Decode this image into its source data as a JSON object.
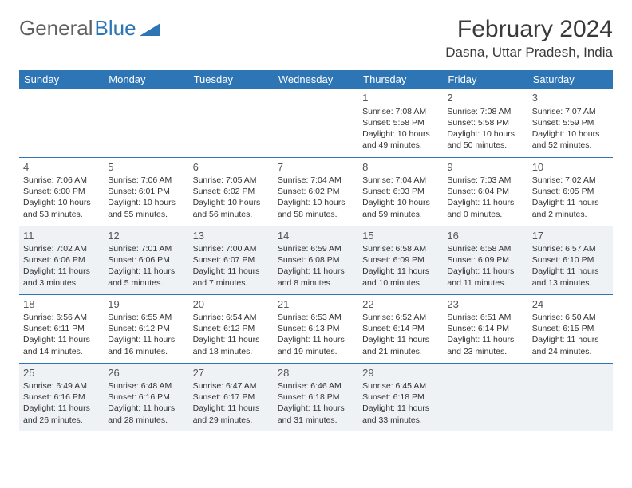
{
  "logo": {
    "text1": "General",
    "text2": "Blue"
  },
  "title": "February 2024",
  "location": "Dasna, Uttar Pradesh, India",
  "colors": {
    "header_bg": "#2e75b6",
    "header_text": "#ffffff",
    "shade_bg": "#eef2f5",
    "border": "#2e75b6",
    "text": "#333333"
  },
  "weekdays": [
    "Sunday",
    "Monday",
    "Tuesday",
    "Wednesday",
    "Thursday",
    "Friday",
    "Saturday"
  ],
  "weeks": [
    [
      null,
      null,
      null,
      null,
      {
        "n": "1",
        "sr": "7:08 AM",
        "ss": "5:58 PM",
        "dl1": "Daylight: 10 hours",
        "dl2": "and 49 minutes."
      },
      {
        "n": "2",
        "sr": "7:08 AM",
        "ss": "5:58 PM",
        "dl1": "Daylight: 10 hours",
        "dl2": "and 50 minutes."
      },
      {
        "n": "3",
        "sr": "7:07 AM",
        "ss": "5:59 PM",
        "dl1": "Daylight: 10 hours",
        "dl2": "and 52 minutes."
      }
    ],
    [
      {
        "n": "4",
        "sr": "7:06 AM",
        "ss": "6:00 PM",
        "dl1": "Daylight: 10 hours",
        "dl2": "and 53 minutes."
      },
      {
        "n": "5",
        "sr": "7:06 AM",
        "ss": "6:01 PM",
        "dl1": "Daylight: 10 hours",
        "dl2": "and 55 minutes."
      },
      {
        "n": "6",
        "sr": "7:05 AM",
        "ss": "6:02 PM",
        "dl1": "Daylight: 10 hours",
        "dl2": "and 56 minutes."
      },
      {
        "n": "7",
        "sr": "7:04 AM",
        "ss": "6:02 PM",
        "dl1": "Daylight: 10 hours",
        "dl2": "and 58 minutes."
      },
      {
        "n": "8",
        "sr": "7:04 AM",
        "ss": "6:03 PM",
        "dl1": "Daylight: 10 hours",
        "dl2": "and 59 minutes."
      },
      {
        "n": "9",
        "sr": "7:03 AM",
        "ss": "6:04 PM",
        "dl1": "Daylight: 11 hours",
        "dl2": "and 0 minutes."
      },
      {
        "n": "10",
        "sr": "7:02 AM",
        "ss": "6:05 PM",
        "dl1": "Daylight: 11 hours",
        "dl2": "and 2 minutes."
      }
    ],
    [
      {
        "n": "11",
        "sr": "7:02 AM",
        "ss": "6:06 PM",
        "dl1": "Daylight: 11 hours",
        "dl2": "and 3 minutes."
      },
      {
        "n": "12",
        "sr": "7:01 AM",
        "ss": "6:06 PM",
        "dl1": "Daylight: 11 hours",
        "dl2": "and 5 minutes."
      },
      {
        "n": "13",
        "sr": "7:00 AM",
        "ss": "6:07 PM",
        "dl1": "Daylight: 11 hours",
        "dl2": "and 7 minutes."
      },
      {
        "n": "14",
        "sr": "6:59 AM",
        "ss": "6:08 PM",
        "dl1": "Daylight: 11 hours",
        "dl2": "and 8 minutes."
      },
      {
        "n": "15",
        "sr": "6:58 AM",
        "ss": "6:09 PM",
        "dl1": "Daylight: 11 hours",
        "dl2": "and 10 minutes."
      },
      {
        "n": "16",
        "sr": "6:58 AM",
        "ss": "6:09 PM",
        "dl1": "Daylight: 11 hours",
        "dl2": "and 11 minutes."
      },
      {
        "n": "17",
        "sr": "6:57 AM",
        "ss": "6:10 PM",
        "dl1": "Daylight: 11 hours",
        "dl2": "and 13 minutes."
      }
    ],
    [
      {
        "n": "18",
        "sr": "6:56 AM",
        "ss": "6:11 PM",
        "dl1": "Daylight: 11 hours",
        "dl2": "and 14 minutes."
      },
      {
        "n": "19",
        "sr": "6:55 AM",
        "ss": "6:12 PM",
        "dl1": "Daylight: 11 hours",
        "dl2": "and 16 minutes."
      },
      {
        "n": "20",
        "sr": "6:54 AM",
        "ss": "6:12 PM",
        "dl1": "Daylight: 11 hours",
        "dl2": "and 18 minutes."
      },
      {
        "n": "21",
        "sr": "6:53 AM",
        "ss": "6:13 PM",
        "dl1": "Daylight: 11 hours",
        "dl2": "and 19 minutes."
      },
      {
        "n": "22",
        "sr": "6:52 AM",
        "ss": "6:14 PM",
        "dl1": "Daylight: 11 hours",
        "dl2": "and 21 minutes."
      },
      {
        "n": "23",
        "sr": "6:51 AM",
        "ss": "6:14 PM",
        "dl1": "Daylight: 11 hours",
        "dl2": "and 23 minutes."
      },
      {
        "n": "24",
        "sr": "6:50 AM",
        "ss": "6:15 PM",
        "dl1": "Daylight: 11 hours",
        "dl2": "and 24 minutes."
      }
    ],
    [
      {
        "n": "25",
        "sr": "6:49 AM",
        "ss": "6:16 PM",
        "dl1": "Daylight: 11 hours",
        "dl2": "and 26 minutes."
      },
      {
        "n": "26",
        "sr": "6:48 AM",
        "ss": "6:16 PM",
        "dl1": "Daylight: 11 hours",
        "dl2": "and 28 minutes."
      },
      {
        "n": "27",
        "sr": "6:47 AM",
        "ss": "6:17 PM",
        "dl1": "Daylight: 11 hours",
        "dl2": "and 29 minutes."
      },
      {
        "n": "28",
        "sr": "6:46 AM",
        "ss": "6:18 PM",
        "dl1": "Daylight: 11 hours",
        "dl2": "and 31 minutes."
      },
      {
        "n": "29",
        "sr": "6:45 AM",
        "ss": "6:18 PM",
        "dl1": "Daylight: 11 hours",
        "dl2": "and 33 minutes."
      },
      null,
      null
    ]
  ],
  "labels": {
    "sunrise": "Sunrise:",
    "sunset": "Sunset:"
  },
  "shaded_weeks": [
    2,
    4
  ]
}
